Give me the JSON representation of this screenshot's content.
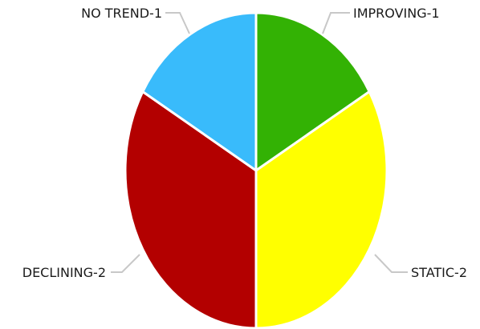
{
  "chart_data": {
    "type": "pie",
    "title": "",
    "slices": [
      {
        "category": "IMPROVING",
        "value": 1,
        "label": "IMPROVING-1",
        "color": "#33b204"
      },
      {
        "category": "STATIC",
        "value": 2,
        "label": "STATIC-2",
        "color": "#ffff00"
      },
      {
        "category": "DECLINING",
        "value": 2,
        "label": "DECLINING-2",
        "color": "#b30000"
      },
      {
        "category": "NO TREND",
        "value": 1,
        "label": "NO TREND-1",
        "color": "#39bbfb"
      }
    ],
    "start_angle_deg": 0,
    "direction": "clockwise",
    "legend": "none"
  }
}
